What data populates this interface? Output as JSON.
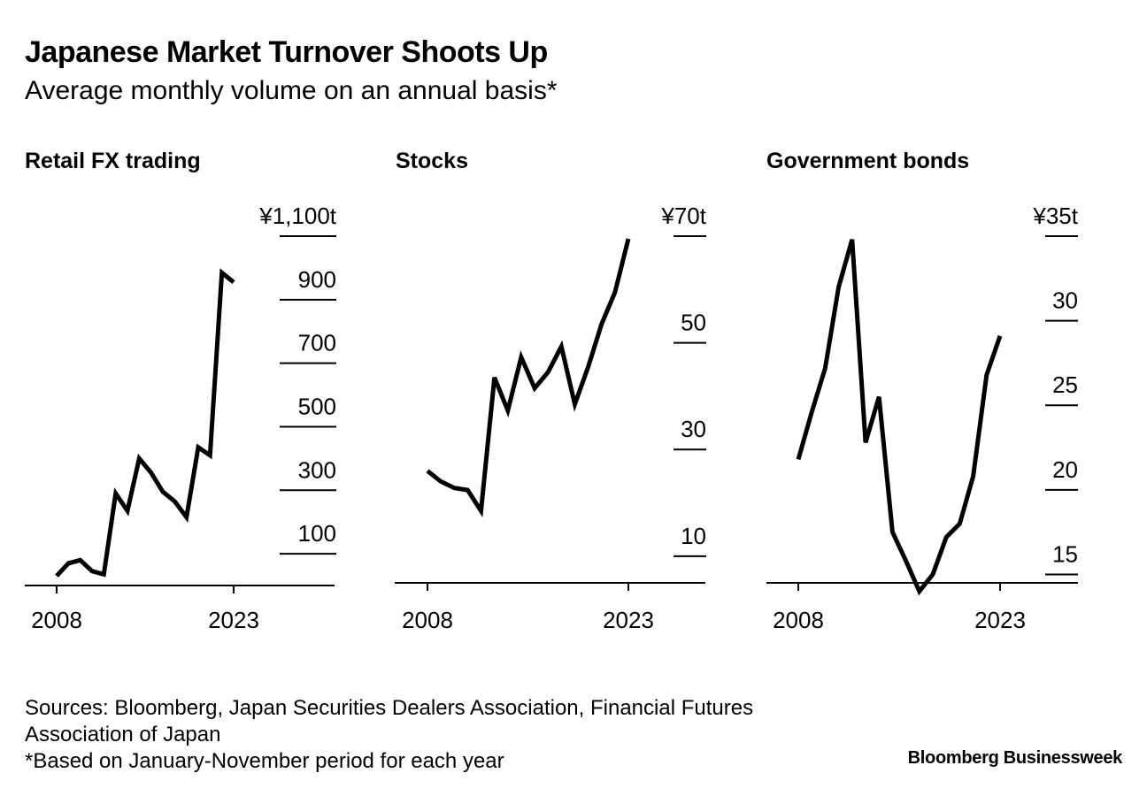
{
  "header": {
    "title": "Japanese Market Turnover Shoots Up",
    "subtitle": "Average monthly volume on an annual basis*"
  },
  "footer": {
    "sources_line1": "Sources: Bloomberg, Japan Securities Dealers Association, Financial Futures",
    "sources_line2": "Association of Japan",
    "note": "*Based on January-November period for each year",
    "brand": "Bloomberg Businessweek"
  },
  "style": {
    "line_color": "#000000",
    "background": "#ffffff"
  },
  "chart_data": [
    {
      "type": "line",
      "title": "Retail FX trading",
      "x": [
        2008,
        2009,
        2010,
        2011,
        2012,
        2013,
        2014,
        2015,
        2016,
        2017,
        2018,
        2019,
        2020,
        2021,
        2022,
        2023
      ],
      "values": [
        30,
        70,
        80,
        45,
        35,
        290,
        235,
        400,
        355,
        295,
        265,
        215,
        435,
        410,
        985,
        955
      ],
      "ylim": [
        0,
        1100
      ],
      "yticks": [
        100,
        300,
        500,
        700,
        900,
        1100
      ],
      "ytick_labels": [
        "100",
        "300",
        "500",
        "700",
        "900",
        "¥1,100t"
      ],
      "xtick_labels": [
        "2008",
        "2023"
      ]
    },
    {
      "type": "line",
      "title": "Stocks",
      "x": [
        2008,
        2009,
        2010,
        2011,
        2012,
        2013,
        2014,
        2015,
        2016,
        2017,
        2018,
        2019,
        2020,
        2021,
        2022,
        2023
      ],
      "values": [
        26,
        24,
        22.8,
        22.4,
        18.5,
        43.5,
        37.3,
        47.3,
        41.5,
        44.5,
        49.3,
        38.5,
        45.5,
        53.5,
        59.5,
        69.5
      ],
      "ylim": [
        5,
        70
      ],
      "yticks": [
        10,
        30,
        50,
        70
      ],
      "ytick_labels": [
        "10",
        "30",
        "50",
        "¥70t"
      ],
      "xtick_labels": [
        "2008",
        "2023"
      ]
    },
    {
      "type": "line",
      "title": "Government bonds",
      "x": [
        2008,
        2009,
        2010,
        2011,
        2012,
        2013,
        2014,
        2015,
        2016,
        2017,
        2018,
        2019,
        2020,
        2021,
        2022,
        2023
      ],
      "values": [
        21.8,
        24.6,
        27.2,
        32,
        34.8,
        22.8,
        25.5,
        17.5,
        15.8,
        14,
        15,
        17.2,
        18,
        20.8,
        26.8,
        29.1
      ],
      "ylim": [
        14.5,
        35
      ],
      "yticks": [
        15,
        20,
        25,
        30,
        35
      ],
      "ytick_labels": [
        "15",
        "20",
        "25",
        "30",
        "¥35t"
      ],
      "xtick_labels": [
        "2008",
        "2023"
      ]
    }
  ]
}
